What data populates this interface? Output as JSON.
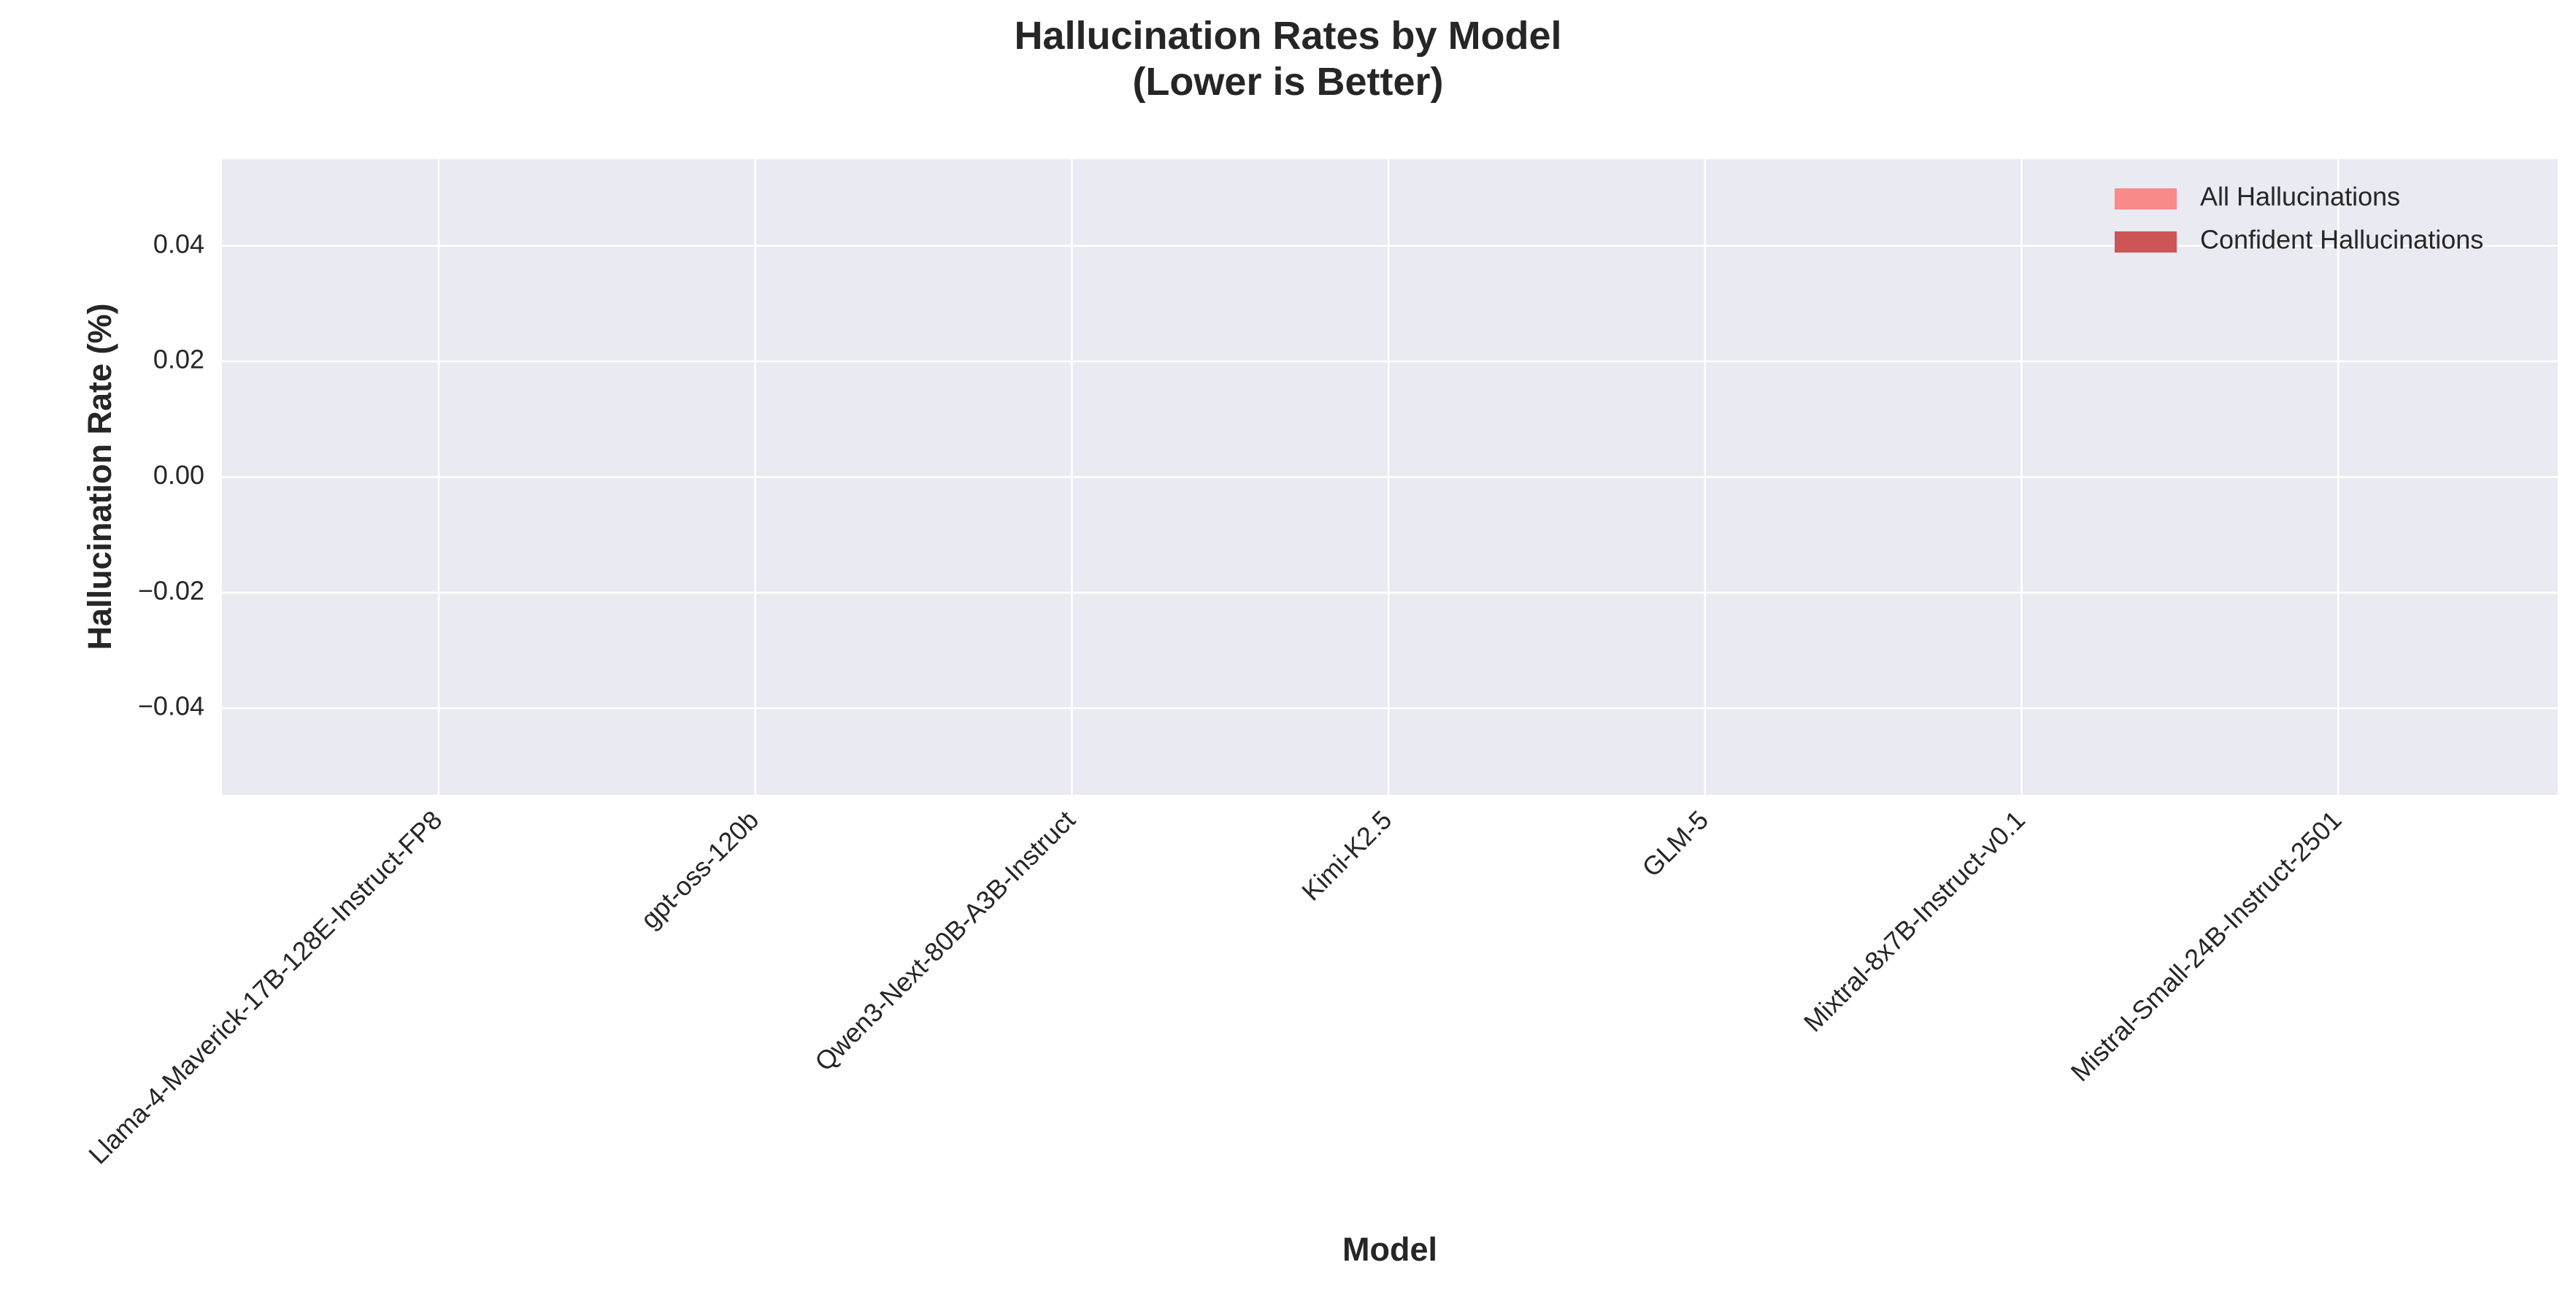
{
  "chart_data": {
    "type": "bar",
    "title": "Hallucination Rates by Model\n(Lower is Better)",
    "x_label": "Model",
    "y_label": "Hallucination Rate (%)",
    "categories": [
      "Llama-4-Maverick-17B-128E-Instruct-FP8",
      "gpt-oss-120b",
      "Qwen3-Next-80B-A3B-Instruct",
      "Kimi-K2.5",
      "GLM-5",
      "Mixtral-8x7B-Instruct-v0.1",
      "Mistral-Small-24B-Instruct-2501"
    ],
    "series": [
      {
        "name": "All Hallucinations",
        "color": "#f88a8a",
        "values": [
          0,
          0,
          0,
          0,
          0,
          0,
          0
        ]
      },
      {
        "name": "Confident Hallucinations",
        "color": "#cd5555",
        "values": [
          0,
          0,
          0,
          0,
          0,
          0,
          0
        ]
      }
    ],
    "ylim": [
      -0.055,
      0.055
    ],
    "yticks": [
      {
        "value": -0.04,
        "label": "−0.04"
      },
      {
        "value": -0.02,
        "label": "−0.02"
      },
      {
        "value": 0,
        "label": "0.00"
      },
      0.02,
      0.04
    ],
    "grid": true,
    "legend": "upper right"
  }
}
